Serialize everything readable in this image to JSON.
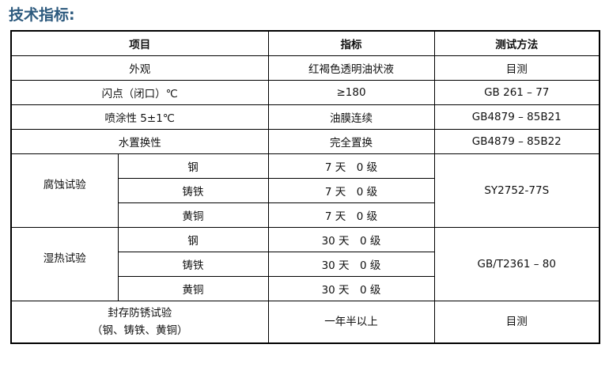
{
  "title": "技术指标:",
  "headers": [
    "项目",
    "指标",
    "测试方法"
  ],
  "rows": [
    {
      "item": "外观",
      "spec": "红褐色透明油状液",
      "method": "目测"
    },
    {
      "item": "闪点（闭口）℃",
      "spec": "≥180",
      "method": "GB 261 – 77"
    },
    {
      "item": "喷涂性 5±1℃",
      "spec": "油膜连续",
      "method": "GB4879 – 85B21"
    },
    {
      "item": "水置换性",
      "spec": "完全置换",
      "method": "GB4879 – 85B22"
    }
  ],
  "groups": [
    {
      "item": "腐蚀试验",
      "method": "SY2752-77S",
      "subs": [
        {
          "metal": "钢",
          "spec": "7 天　0 级"
        },
        {
          "metal": "铸铁",
          "spec": "7 天　0 级"
        },
        {
          "metal": "黄铜",
          "spec": "7 天　0 级"
        }
      ]
    },
    {
      "item": "湿热试验",
      "method": "GB/T2361 – 80",
      "subs": [
        {
          "metal": "钢",
          "spec": "30 天　0 级"
        },
        {
          "metal": "铸铁",
          "spec": "30 天　0 级"
        },
        {
          "metal": "黄铜",
          "spec": "30 天　0 级"
        }
      ]
    }
  ],
  "last": {
    "item_line1": "封存防锈试验",
    "item_line2": "（钢、铸铁、黄铜）",
    "spec": "一年半以上",
    "method": "目测"
  }
}
